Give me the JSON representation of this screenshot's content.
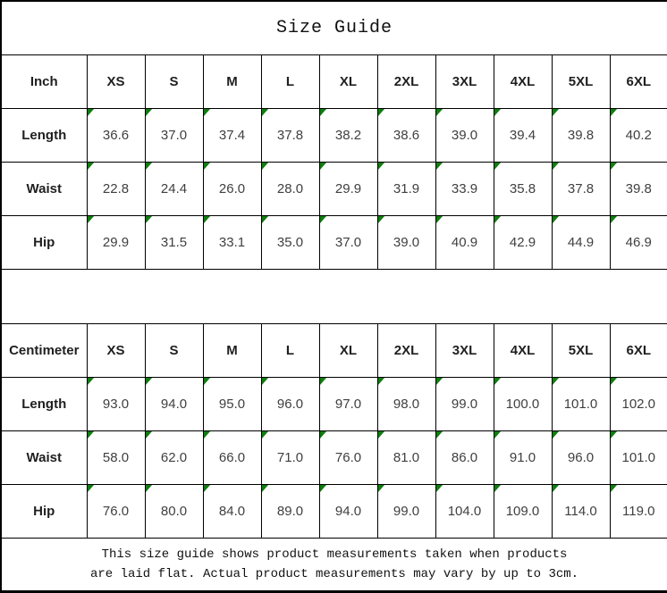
{
  "title": "Size Guide",
  "sizes": [
    "XS",
    "S",
    "M",
    "L",
    "XL",
    "2XL",
    "3XL",
    "4XL",
    "5XL",
    "6XL"
  ],
  "tables": [
    {
      "unit": "Inch",
      "rows": [
        {
          "label": "Length",
          "values": [
            "36.6",
            "37.0",
            "37.4",
            "37.8",
            "38.2",
            "38.6",
            "39.0",
            "39.4",
            "39.8",
            "40.2"
          ]
        },
        {
          "label": "Waist",
          "values": [
            "22.8",
            "24.4",
            "26.0",
            "28.0",
            "29.9",
            "31.9",
            "33.9",
            "35.8",
            "37.8",
            "39.8"
          ]
        },
        {
          "label": "Hip",
          "values": [
            "29.9",
            "31.5",
            "33.1",
            "35.0",
            "37.0",
            "39.0",
            "40.9",
            "42.9",
            "44.9",
            "46.9"
          ]
        }
      ]
    },
    {
      "unit": "Centimeter",
      "rows": [
        {
          "label": "Length",
          "values": [
            "93.0",
            "94.0",
            "95.0",
            "96.0",
            "97.0",
            "98.0",
            "99.0",
            "100.0",
            "101.0",
            "102.0"
          ]
        },
        {
          "label": "Waist",
          "values": [
            "58.0",
            "62.0",
            "66.0",
            "71.0",
            "76.0",
            "81.0",
            "86.0",
            "91.0",
            "96.0",
            "101.0"
          ]
        },
        {
          "label": "Hip",
          "values": [
            "76.0",
            "80.0",
            "84.0",
            "89.0",
            "94.0",
            "99.0",
            "104.0",
            "109.0",
            "114.0",
            "119.0"
          ]
        }
      ]
    }
  ],
  "footer": {
    "line1": "This size guide shows product measurements taken when products",
    "line2": "are laid flat. Actual product measurements may vary by up to 3cm."
  },
  "icons": {
    "corner_marker": "green-triangle-top-left"
  },
  "colors": {
    "marker_green": "#0e7e0e",
    "grid": "#000000",
    "value_text": "#3f3f3f",
    "label_text": "#1f1f1f",
    "background": "#ffffff"
  },
  "chart_data": [
    {
      "type": "table",
      "title": "Size Guide",
      "unit": "Inch",
      "columns": [
        "Inch",
        "XS",
        "S",
        "M",
        "L",
        "XL",
        "2XL",
        "3XL",
        "4XL",
        "5XL",
        "6XL"
      ],
      "rows": [
        [
          "Length",
          36.6,
          37.0,
          37.4,
          37.8,
          38.2,
          38.6,
          39.0,
          39.4,
          39.8,
          40.2
        ],
        [
          "Waist",
          22.8,
          24.4,
          26.0,
          28.0,
          29.9,
          31.9,
          33.9,
          35.8,
          37.8,
          39.8
        ],
        [
          "Hip",
          29.9,
          31.5,
          33.1,
          35.0,
          37.0,
          39.0,
          40.9,
          42.9,
          44.9,
          46.9
        ]
      ]
    },
    {
      "type": "table",
      "title": "Size Guide",
      "unit": "Centimeter",
      "columns": [
        "Centimeter",
        "XS",
        "S",
        "M",
        "L",
        "XL",
        "2XL",
        "3XL",
        "4XL",
        "5XL",
        "6XL"
      ],
      "rows": [
        [
          "Length",
          93.0,
          94.0,
          95.0,
          96.0,
          97.0,
          98.0,
          99.0,
          100.0,
          101.0,
          102.0
        ],
        [
          "Waist",
          58.0,
          62.0,
          66.0,
          71.0,
          76.0,
          81.0,
          86.0,
          91.0,
          96.0,
          101.0
        ],
        [
          "Hip",
          76.0,
          80.0,
          84.0,
          89.0,
          94.0,
          99.0,
          104.0,
          109.0,
          114.0,
          119.0
        ]
      ]
    }
  ]
}
